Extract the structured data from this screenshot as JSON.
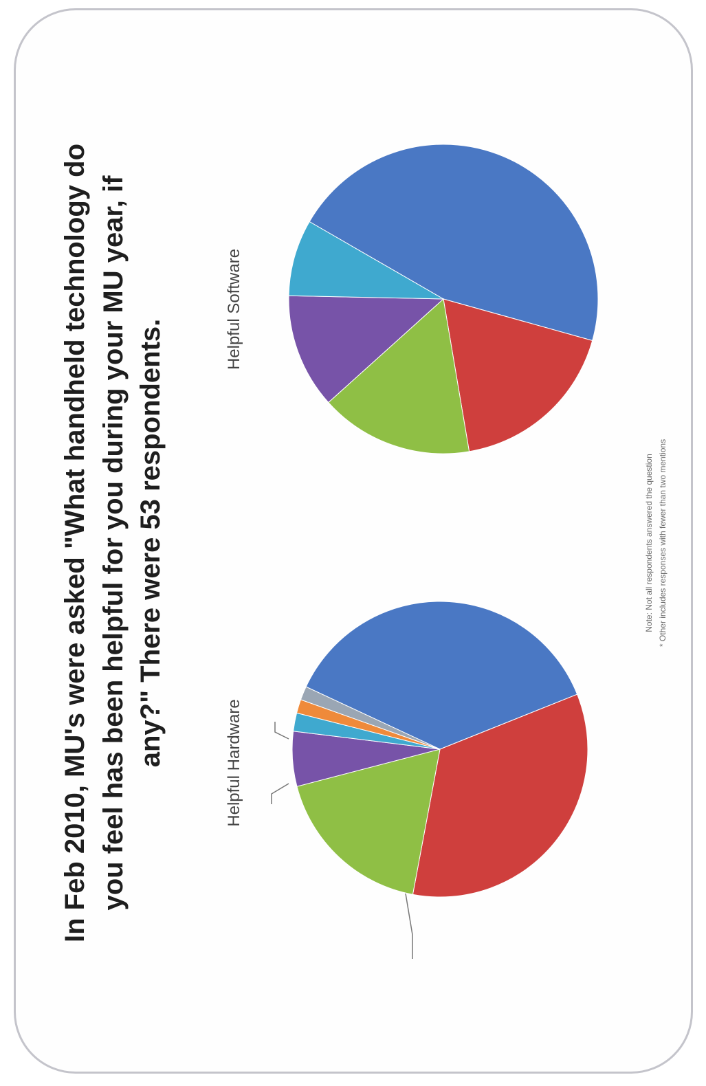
{
  "heading": {
    "lines": [
      "In Feb 2010, MU's were asked \"What handheld technology do",
      "you feel has been helpful for you during your MU year, if",
      "any?\" There were 53 respondents."
    ]
  },
  "footnotes": [
    "Note: Not all respondents answered the question",
    "* Other includes responses with fewer than two mentions"
  ],
  "colors": {
    "blue": "#4a78c4",
    "red": "#cf3f3d",
    "green": "#8fbf45",
    "purple": "#7753a8",
    "cyan": "#3fa9cf",
    "orange": "#ef8a3a",
    "frame": "#c4c4cb"
  },
  "chart_data": [
    {
      "type": "pie",
      "title": "Helpful Hardware",
      "slices": [
        {
          "label": "",
          "value": 37,
          "color": "#4a78c4"
        },
        {
          "label": "",
          "value": 34,
          "color": "#cf3f3d"
        },
        {
          "label": "",
          "value": 18,
          "color": "#8fbf45"
        },
        {
          "label": "",
          "value": 6,
          "color": "#7753a8"
        },
        {
          "label": "",
          "value": 2,
          "color": "#3fa9cf"
        },
        {
          "label": "",
          "value": 1.5,
          "color": "#ef8a3a"
        },
        {
          "label": "",
          "value": 1.5,
          "color": "#9aa6b4"
        }
      ]
    },
    {
      "type": "pie",
      "title": "Helpful Software",
      "slices": [
        {
          "label": "",
          "value": 46,
          "color": "#4a78c4"
        },
        {
          "label": "",
          "value": 18,
          "color": "#cf3f3d"
        },
        {
          "label": "",
          "value": 16,
          "color": "#8fbf45"
        },
        {
          "label": "",
          "value": 12,
          "color": "#7753a8"
        },
        {
          "label": "",
          "value": 8,
          "color": "#3fa9cf"
        }
      ]
    }
  ]
}
